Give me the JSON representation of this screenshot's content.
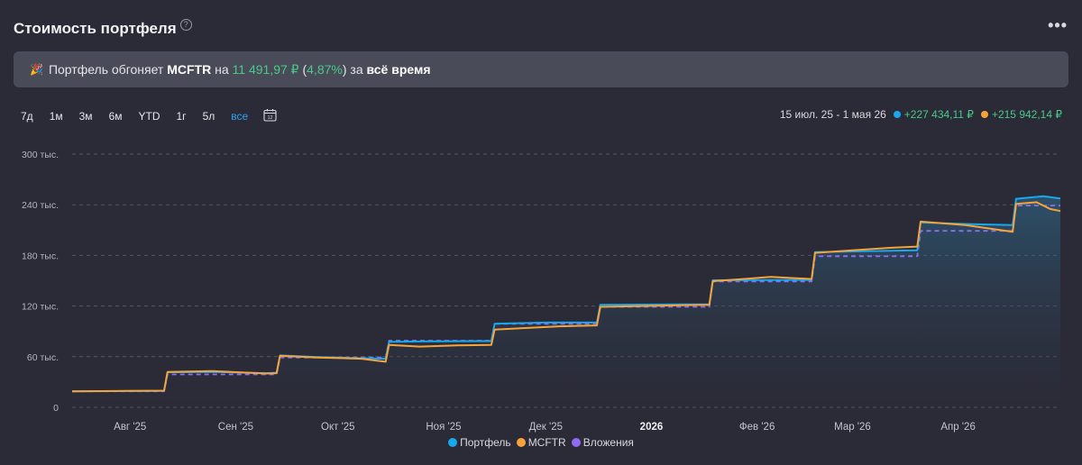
{
  "header": {
    "title": "Стоимость портфеля",
    "help": "?",
    "more": "•••"
  },
  "banner": {
    "emoji": "🎉",
    "prefix": "Портфель обгоняет",
    "benchmark": "MCFTR",
    "on": "на",
    "amount": "11 491,97 ₽",
    "open_paren": "(",
    "percent": "4,87%",
    "close_paren": ")",
    "for": "за",
    "period": "всё время"
  },
  "ranges": [
    "7д",
    "1м",
    "3м",
    "6м",
    "YTD",
    "1г",
    "5л",
    "все"
  ],
  "active_range": "все",
  "summary": {
    "period": "15 июл. 25 - 1 мая 26",
    "portfolio_gain": "+227 434,11 ₽",
    "benchmark_gain": "+215 942,14 ₽"
  },
  "colors": {
    "portfolio": "#16a9ef",
    "mcftr": "#f6a33a",
    "deposits": "#8f6cf3",
    "gain": "#49c98a",
    "background": "#2b2b37",
    "banner": "#4a4b58"
  },
  "icons": {
    "calendar": "calendar-icon",
    "help": "help-icon",
    "more": "more-icon"
  },
  "chart_data": {
    "type": "line",
    "ylim": [
      0,
      300000
    ],
    "xlim": [
      "2025-07-15",
      "2026-05-01"
    ],
    "y_ticks": [
      {
        "value": 0,
        "label": "0"
      },
      {
        "value": 60000,
        "label": "60 тыс."
      },
      {
        "value": 120000,
        "label": "120 тыс."
      },
      {
        "value": 180000,
        "label": "180 тыс."
      },
      {
        "value": 240000,
        "label": "240 тыс."
      },
      {
        "value": 300000,
        "label": "300 тыс."
      }
    ],
    "x_ticks": [
      {
        "date": "2025-08-01",
        "label": "Авг '25",
        "bold": false
      },
      {
        "date": "2025-09-01",
        "label": "Сен '25",
        "bold": false
      },
      {
        "date": "2025-10-01",
        "label": "Окт '25",
        "bold": false
      },
      {
        "date": "2025-11-01",
        "label": "Ноя '25",
        "bold": false
      },
      {
        "date": "2025-12-01",
        "label": "Дек '25",
        "bold": false
      },
      {
        "date": "2026-01-01",
        "label": "2026",
        "bold": true
      },
      {
        "date": "2026-02-01",
        "label": "Фев '26",
        "bold": false
      },
      {
        "date": "2026-03-01",
        "label": "Мар '26",
        "bold": false
      },
      {
        "date": "2026-04-01",
        "label": "Апр '26",
        "bold": false
      }
    ],
    "grid": "horizontal-dashed",
    "legend_position": "bottom",
    "series": [
      {
        "name": "Портфель",
        "color": "#16a9ef",
        "style": "solid-area",
        "points": [
          [
            "2025-07-15",
            19000
          ],
          [
            "2025-08-01",
            19300
          ],
          [
            "2025-08-11",
            19500
          ],
          [
            "2025-08-12",
            41500
          ],
          [
            "2025-08-25",
            42000
          ],
          [
            "2025-09-10",
            40500
          ],
          [
            "2025-09-13",
            41000
          ],
          [
            "2025-09-14",
            61500
          ],
          [
            "2025-09-25",
            59500
          ],
          [
            "2025-10-10",
            58000
          ],
          [
            "2025-10-15",
            57500
          ],
          [
            "2025-10-16",
            77500
          ],
          [
            "2025-10-25",
            78000
          ],
          [
            "2025-11-12",
            78500
          ],
          [
            "2025-11-15",
            78500
          ],
          [
            "2025-11-16",
            99000
          ],
          [
            "2025-12-01",
            100500
          ],
          [
            "2025-12-16",
            100500
          ],
          [
            "2025-12-17",
            121500
          ],
          [
            "2026-01-10",
            122000
          ],
          [
            "2026-01-18",
            122000
          ],
          [
            "2026-01-19",
            150500
          ],
          [
            "2026-02-10",
            151000
          ],
          [
            "2026-02-17",
            151000
          ],
          [
            "2026-02-18",
            184000
          ],
          [
            "2026-03-05",
            185000
          ],
          [
            "2026-03-20",
            186000
          ],
          [
            "2026-03-21",
            219000
          ],
          [
            "2026-04-05",
            217000
          ],
          [
            "2026-04-17",
            216000
          ],
          [
            "2026-04-18",
            247000
          ],
          [
            "2026-04-26",
            250000
          ],
          [
            "2026-05-01",
            247500
          ]
        ]
      },
      {
        "name": "MCFTR",
        "color": "#f6a33a",
        "style": "solid",
        "points": [
          [
            "2025-07-15",
            19000
          ],
          [
            "2025-08-01",
            19500
          ],
          [
            "2025-08-11",
            19800
          ],
          [
            "2025-08-12",
            42000
          ],
          [
            "2025-08-25",
            43000
          ],
          [
            "2025-09-10",
            40000
          ],
          [
            "2025-09-13",
            40500
          ],
          [
            "2025-09-14",
            61000
          ],
          [
            "2025-09-25",
            59000
          ],
          [
            "2025-10-08",
            57500
          ],
          [
            "2025-10-13",
            55000
          ],
          [
            "2025-10-15",
            54000
          ],
          [
            "2025-10-16",
            74000
          ],
          [
            "2025-10-25",
            72000
          ],
          [
            "2025-11-05",
            73500
          ],
          [
            "2025-11-15",
            74000
          ],
          [
            "2025-11-16",
            92000
          ],
          [
            "2025-11-25",
            94000
          ],
          [
            "2025-12-05",
            96000
          ],
          [
            "2025-12-16",
            97000
          ],
          [
            "2025-12-17",
            119000
          ],
          [
            "2026-01-05",
            120500
          ],
          [
            "2026-01-18",
            121500
          ],
          [
            "2026-01-19",
            149500
          ],
          [
            "2026-01-28",
            152000
          ],
          [
            "2026-02-05",
            154500
          ],
          [
            "2026-02-17",
            152000
          ],
          [
            "2026-02-18",
            183000
          ],
          [
            "2026-03-01",
            186000
          ],
          [
            "2026-03-12",
            189000
          ],
          [
            "2026-03-20",
            190500
          ],
          [
            "2026-03-21",
            220000
          ],
          [
            "2026-04-03",
            216000
          ],
          [
            "2026-04-17",
            208000
          ],
          [
            "2026-04-18",
            241000
          ],
          [
            "2026-04-24",
            243000
          ],
          [
            "2026-04-28",
            235000
          ],
          [
            "2026-05-01",
            232500
          ]
        ]
      },
      {
        "name": "Вложения",
        "color": "#8f6cf3",
        "style": "dashed",
        "points": [
          [
            "2025-07-15",
            19000
          ],
          [
            "2025-08-11",
            19000
          ],
          [
            "2025-08-12",
            39000
          ],
          [
            "2025-09-13",
            39000
          ],
          [
            "2025-09-14",
            59000
          ],
          [
            "2025-10-15",
            59000
          ],
          [
            "2025-10-16",
            79000
          ],
          [
            "2025-11-15",
            79000
          ],
          [
            "2025-11-16",
            99000
          ],
          [
            "2025-12-16",
            99000
          ],
          [
            "2025-12-17",
            119000
          ],
          [
            "2026-01-18",
            119000
          ],
          [
            "2026-01-19",
            149000
          ],
          [
            "2026-02-17",
            149000
          ],
          [
            "2026-02-18",
            179000
          ],
          [
            "2026-03-20",
            179000
          ],
          [
            "2026-03-21",
            209000
          ],
          [
            "2026-04-17",
            209000
          ],
          [
            "2026-04-18",
            239000
          ],
          [
            "2026-05-01",
            239000
          ]
        ]
      }
    ]
  }
}
